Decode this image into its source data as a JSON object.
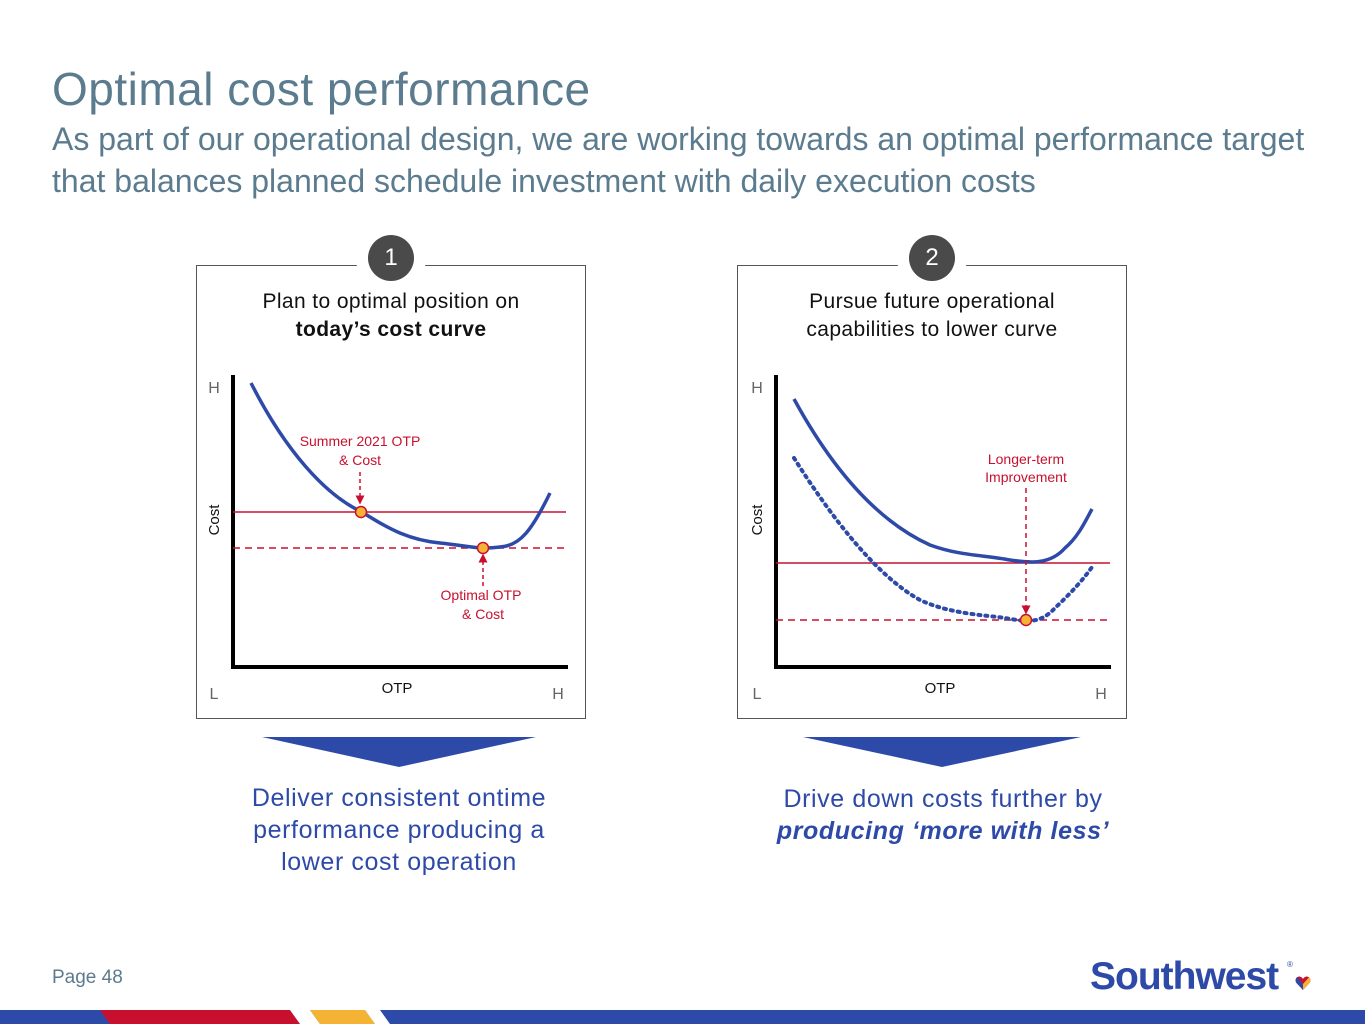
{
  "header": {
    "title": "Optimal cost performance",
    "subtitle": "As part of our operational design, we are working towards an optimal performance target that balances planned schedule investment with daily execution costs"
  },
  "panels": [
    {
      "number": "1",
      "title_line1": "Plan to optimal position on",
      "title_line2_bold": "today’s cost curve",
      "axis": {
        "y_label": "Cost",
        "x_label": "OTP",
        "y_high": "H",
        "x_low": "L",
        "x_high": "H"
      },
      "annotations": {
        "current_line1": "Summer 2021 OTP",
        "current_line2": "& Cost",
        "optimal_line1": "Optimal OTP",
        "optimal_line2": "& Cost"
      },
      "caption": "Deliver consistent ontime performance producing a lower cost operation"
    },
    {
      "number": "2",
      "title_line1": "Pursue future operational",
      "title_line2": "capabilities to lower curve",
      "axis": {
        "y_label": "Cost",
        "x_label": "OTP",
        "y_high": "H",
        "x_low": "L",
        "x_high": "H"
      },
      "annotations": {
        "improvement_line1": "Longer-term",
        "improvement_line2": "Improvement"
      },
      "caption_line1": "Drive down costs further by",
      "caption_line2_emph": "producing ‘more with less’"
    }
  ],
  "footer": {
    "page": "Page 48",
    "logo_text": "Southwest"
  },
  "colors": {
    "heading": "#5b7b8e",
    "brand_blue": "#2e4aa8",
    "curve_blue": "#2e4aa8",
    "accent_red": "#c8102e",
    "marker_yellow": "#f5b335",
    "badge_gray": "#4a4a4a"
  }
}
